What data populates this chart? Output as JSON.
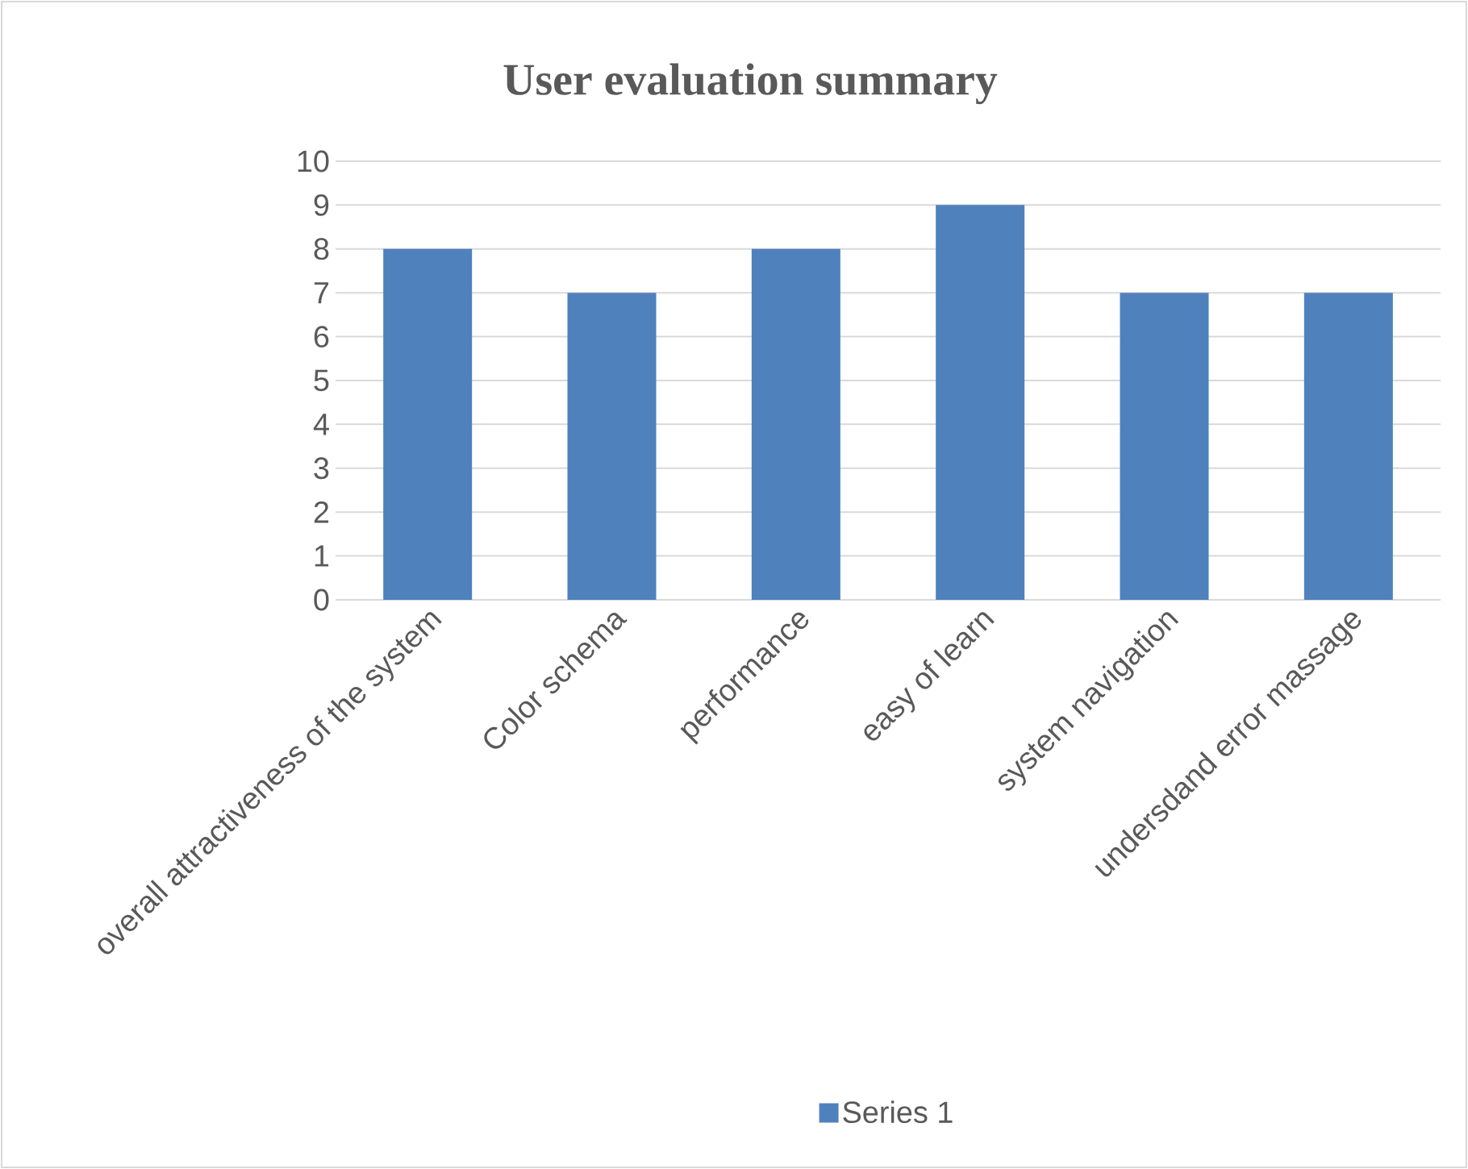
{
  "chart_data": {
    "type": "bar",
    "title": "User evaluation summary",
    "categories": [
      "overall attractiveness of the system",
      "Color schema",
      "performance",
      "easy of learn",
      "system navigation",
      "undersdand error massage"
    ],
    "series": [
      {
        "name": "Series 1",
        "color": "#4f81bd",
        "values": [
          8,
          7,
          8,
          9,
          7,
          7
        ]
      }
    ],
    "ylim": [
      0,
      10
    ],
    "yticks": [
      0,
      1,
      2,
      3,
      4,
      5,
      6,
      7,
      8,
      9,
      10
    ],
    "grid": "y",
    "legend": "bottom"
  }
}
